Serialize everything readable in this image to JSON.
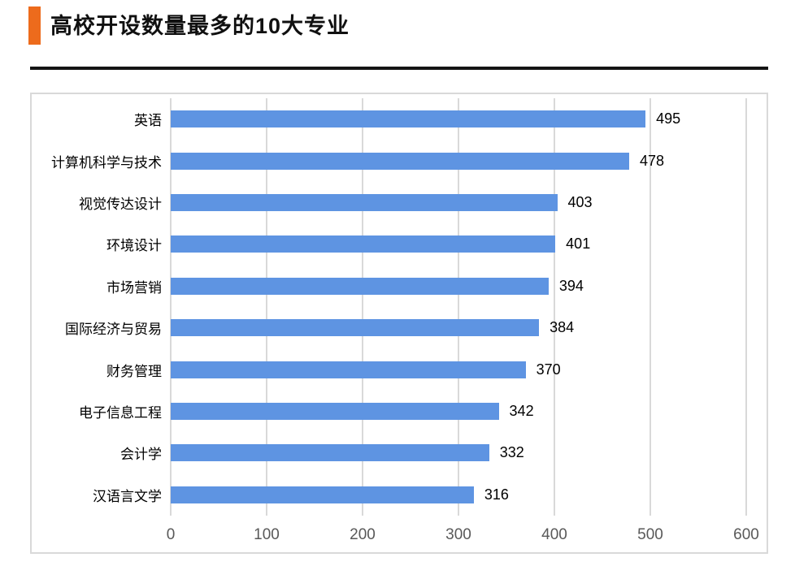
{
  "page": {
    "title": "高校开设数量最多的10大专业"
  },
  "chart_data": {
    "type": "bar",
    "orientation": "horizontal",
    "title": "高校开设数量最多的10大专业",
    "categories": [
      "英语",
      "计算机科学与技术",
      "视觉传达设计",
      "环境设计",
      "市场营销",
      "国际经济与贸易",
      "财务管理",
      "电子信息工程",
      "会计学",
      "汉语言文学"
    ],
    "values": [
      495,
      478,
      403,
      401,
      394,
      384,
      370,
      342,
      332,
      316
    ],
    "data_labels": [
      495,
      478,
      403,
      401,
      394,
      384,
      370,
      342,
      332,
      316
    ],
    "x_ticks": [
      0,
      100,
      200,
      300,
      400,
      500,
      600
    ],
    "xlim": [
      0,
      600
    ],
    "xlabel": "",
    "ylabel": "",
    "grid": true,
    "legend": false,
    "colors": {
      "bar": "#5e94e2",
      "gridline": "#d9d9d9",
      "tick_label": "#595959",
      "text": "#000000",
      "accent": "#ed6b1c"
    }
  }
}
